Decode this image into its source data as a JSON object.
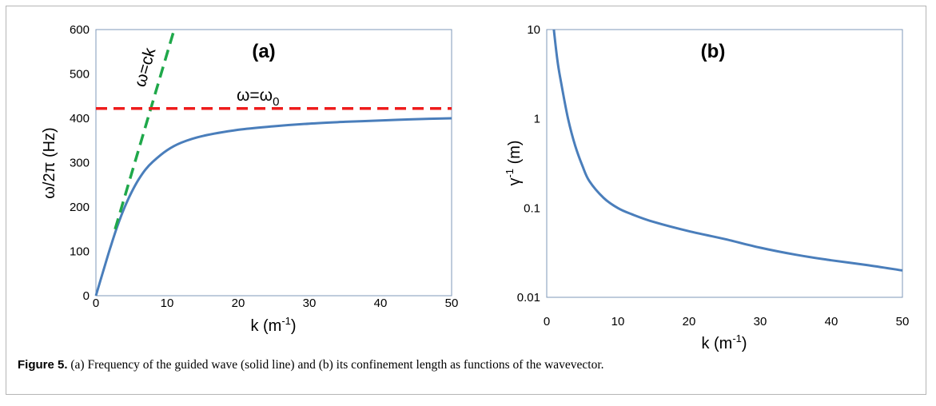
{
  "chart_data": [
    {
      "type": "line",
      "panel_label": "(a)",
      "xlabel": "k (m",
      "xlabel_sup": "-1",
      "xlabel_close": ")",
      "ylabel": "ω/2π (Hz)",
      "xlim": [
        0,
        50
      ],
      "ylim": [
        0,
        600
      ],
      "xticks": [
        "0",
        "10",
        "20",
        "30",
        "40",
        "50"
      ],
      "yticks": [
        "0",
        "100",
        "200",
        "300",
        "400",
        "500",
        "600"
      ],
      "grid": false,
      "series": [
        {
          "style": "solid",
          "color": "#4a7ebb",
          "x": [
            0,
            1,
            2,
            3,
            4,
            5,
            6,
            7,
            8,
            10,
            12,
            15,
            20,
            25,
            30,
            35,
            40,
            45,
            50
          ],
          "y": [
            0,
            54,
            107,
            156,
            198,
            233,
            262,
            285,
            302,
            328,
            345,
            360,
            374,
            382,
            388,
            392,
            395,
            398,
            400
          ]
        },
        {
          "name": "ω=ck",
          "style": "dashed",
          "color": "#1fa84a",
          "x": [
            2.7,
            11
          ],
          "y": [
            150,
            600
          ]
        },
        {
          "name": "ω=ω0",
          "style": "dashed",
          "color": "#ee1c1c",
          "x": [
            0,
            50
          ],
          "y": [
            422,
            422
          ]
        }
      ],
      "annotations": {
        "ck_label": "ω=ck",
        "w0_label": "ω=ω",
        "w0_sub": "0"
      }
    },
    {
      "type": "line",
      "panel_label": "(b)",
      "xlabel": "k (m",
      "xlabel_sup": "-1",
      "xlabel_close": ")",
      "ylabel": "γ",
      "ylabel_sup": "-1",
      "ylabel_unit": " (m)",
      "xlim": [
        0,
        50
      ],
      "ylim": [
        0.01,
        10
      ],
      "yscale": "log",
      "xticks": [
        "0",
        "10",
        "20",
        "30",
        "40",
        "50"
      ],
      "yticks": [
        "0.01",
        "0.1",
        "1",
        "10"
      ],
      "grid": false,
      "series": [
        {
          "style": "solid",
          "color": "#4a7ebb",
          "x": [
            1,
            1.5,
            2,
            3,
            4,
            5,
            6,
            8,
            10,
            12,
            15,
            20,
            25,
            30,
            35,
            40,
            45,
            50
          ],
          "y": [
            10,
            4.5,
            2.6,
            1.0,
            0.5,
            0.3,
            0.2,
            0.13,
            0.1,
            0.085,
            0.07,
            0.055,
            0.045,
            0.036,
            0.03,
            0.026,
            0.023,
            0.02
          ]
        }
      ]
    }
  ],
  "caption": {
    "label": "Figure 5.",
    "text": " (a) Frequency of the guided wave (solid line) and (b) its confinement length as functions of the wavevector."
  }
}
